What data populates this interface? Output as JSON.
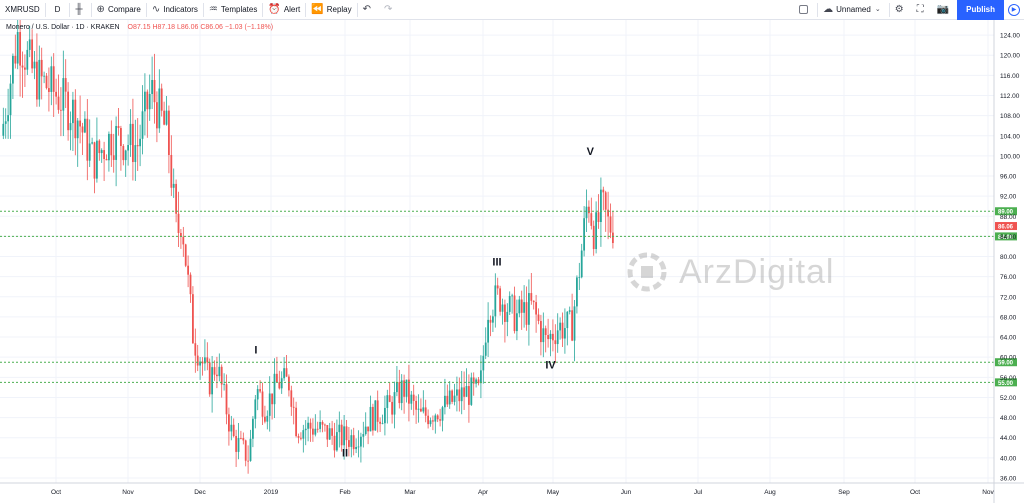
{
  "toolbar": {
    "symbol": "XMRUSD",
    "interval": "D",
    "compare_label": "Compare",
    "indicators_label": "Indicators",
    "templates_label": "Templates",
    "alert_label": "Alert",
    "replay_label": "Replay",
    "layout_name": "Unnamed",
    "publish_label": "Publish"
  },
  "legend": {
    "title": "Monero / U.S. Dollar · 1D · KRAKEN",
    "ohlc": "O87.15 H87.18 L86.06 C86.06 −1.03 (−1.18%)"
  },
  "watermark": {
    "text": "ArzDigital"
  },
  "colors": {
    "up": "#26a69a",
    "down": "#ef5350",
    "level": "#4caf50",
    "price": "#ef5350"
  },
  "chart_data": {
    "type": "candlestick",
    "title": "Monero / U.S. Dollar · 1D · KRAKEN",
    "y_ticks": [
      36,
      40,
      44,
      48,
      52,
      56,
      60,
      64,
      68,
      72,
      76,
      80,
      84,
      88,
      92,
      96,
      100,
      104,
      108,
      112,
      116,
      120,
      124
    ],
    "ylim": [
      35,
      127
    ],
    "x_ticks": [
      "Oct",
      "Nov",
      "Dec",
      "2019",
      "Feb",
      "Mar",
      "Apr",
      "May",
      "Jun",
      "Jul",
      "Aug",
      "Sep",
      "Oct",
      "Nov"
    ],
    "levels": [
      {
        "value": 89.0,
        "label": "89.00"
      },
      {
        "value": 84.0,
        "label": "84.00"
      },
      {
        "value": 59.0,
        "label": "59.00"
      },
      {
        "value": 55.0,
        "label": "55.00"
      }
    ],
    "last_price": {
      "value": 86.06,
      "label": "86.06"
    },
    "wave_labels": [
      {
        "label": "I",
        "month": "Dec",
        "day": 25,
        "value": 59.5,
        "pos": "above"
      },
      {
        "label": "II",
        "month": "Feb",
        "day": 1,
        "value": 43.0,
        "pos": "below"
      },
      {
        "label": "III",
        "month": "Apr",
        "day": 7,
        "value": 77.0,
        "pos": "above"
      },
      {
        "label": "IV",
        "month": "Apr",
        "day": 30,
        "value": 60.5,
        "pos": "below"
      },
      {
        "label": "V",
        "month": "May",
        "day": 17,
        "value": 99.0,
        "pos": "above"
      }
    ],
    "segments": [
      {
        "month": "Sep",
        "day": 8,
        "value": 104
      },
      {
        "month": "Sep",
        "day": 15,
        "value": 124
      },
      {
        "month": "Sep",
        "day": 22,
        "value": 116
      },
      {
        "month": "Sep",
        "day": 30,
        "value": 113
      },
      {
        "month": "Oct",
        "day": 10,
        "value": 108
      },
      {
        "month": "Oct",
        "day": 17,
        "value": 99
      },
      {
        "month": "Oct",
        "day": 25,
        "value": 104
      },
      {
        "month": "Nov",
        "day": 5,
        "value": 102
      },
      {
        "month": "Nov",
        "day": 11,
        "value": 113
      },
      {
        "month": "Nov",
        "day": 18,
        "value": 104
      },
      {
        "month": "Nov",
        "day": 22,
        "value": 84
      },
      {
        "month": "Nov",
        "day": 24,
        "value": 88
      },
      {
        "month": "Nov",
        "day": 29,
        "value": 64
      },
      {
        "month": "Dec",
        "day": 5,
        "value": 55
      },
      {
        "month": "Dec",
        "day": 8,
        "value": 59
      },
      {
        "month": "Dec",
        "day": 15,
        "value": 44
      },
      {
        "month": "Dec",
        "day": 22,
        "value": 40
      },
      {
        "month": "Dec",
        "day": 25,
        "value": 54
      },
      {
        "month": "Dec",
        "day": 29,
        "value": 50
      },
      {
        "month": "Jan",
        "day": 4,
        "value": 55
      },
      {
        "month": "Jan",
        "day": 9,
        "value": 55
      },
      {
        "month": "Jan",
        "day": 12,
        "value": 46
      },
      {
        "month": "Jan",
        "day": 20,
        "value": 46
      },
      {
        "month": "Jan",
        "day": 29,
        "value": 44
      },
      {
        "month": "Feb",
        "day": 5,
        "value": 44
      },
      {
        "month": "Feb",
        "day": 12,
        "value": 48
      },
      {
        "month": "Feb",
        "day": 20,
        "value": 50
      },
      {
        "month": "Feb",
        "day": 26,
        "value": 54
      },
      {
        "month": "Mar",
        "day": 5,
        "value": 48
      },
      {
        "month": "Mar",
        "day": 15,
        "value": 50
      },
      {
        "month": "Mar",
        "day": 25,
        "value": 53
      },
      {
        "month": "Mar",
        "day": 31,
        "value": 53
      },
      {
        "month": "Apr",
        "day": 3,
        "value": 70
      },
      {
        "month": "Apr",
        "day": 8,
        "value": 72
      },
      {
        "month": "Apr",
        "day": 15,
        "value": 68
      },
      {
        "month": "Apr",
        "day": 22,
        "value": 70
      },
      {
        "month": "Apr",
        "day": 28,
        "value": 63
      },
      {
        "month": "May",
        "day": 3,
        "value": 66
      },
      {
        "month": "May",
        "day": 9,
        "value": 66
      },
      {
        "month": "May",
        "day": 13,
        "value": 80
      },
      {
        "month": "May",
        "day": 16,
        "value": 92
      },
      {
        "month": "May",
        "day": 19,
        "value": 84
      },
      {
        "month": "May",
        "day": 22,
        "value": 90
      },
      {
        "month": "May",
        "day": 25,
        "value": 86
      },
      {
        "month": "May",
        "day": 27,
        "value": 86
      }
    ]
  }
}
